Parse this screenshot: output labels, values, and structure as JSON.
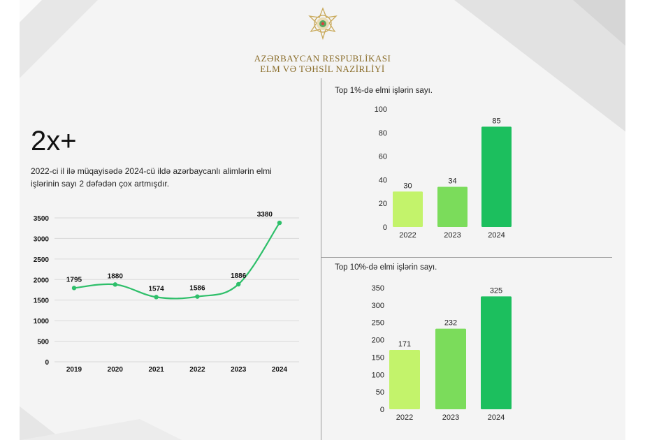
{
  "header": {
    "org_line1": "AZƏRBAYCAN RESPUBLİKASI",
    "org_line2": "ELM VƏ TƏHSİL NAZİRLİYİ"
  },
  "headline": {
    "stat": "2x+",
    "description": "2022-ci il ilə müqayisədə 2024-cü ildə azərbaycanlı alimlərin elmi işlərinin sayı 2 dəfədən çox artmışdır."
  },
  "colors": {
    "line": "#2ebf6a",
    "bar_light": "#c3f36b",
    "bar_mid": "#7bdc5b",
    "bar_dark": "#1cbf5e",
    "gold": "#8a6d2a"
  },
  "chart_data": [
    {
      "type": "line",
      "title": "",
      "x": [
        "2019",
        "2020",
        "2021",
        "2022",
        "2023",
        "2024"
      ],
      "values": [
        1795,
        1880,
        1574,
        1586,
        1886,
        3380
      ],
      "data_labels": [
        "1795",
        "1880",
        "1574",
        "1586",
        "1886",
        "3380"
      ],
      "yticks": [
        "0",
        "500",
        "1000",
        "1500",
        "2000",
        "2500",
        "3000",
        "3500"
      ],
      "ylim": [
        0,
        3500
      ],
      "grid": true
    },
    {
      "type": "bar",
      "title": "Top 1%-də elmi işlərin sayı.",
      "categories": [
        "2022",
        "2023",
        "2024"
      ],
      "values": [
        30,
        34,
        85
      ],
      "data_labels": [
        "30",
        "34",
        "85"
      ],
      "yticks": [
        "0",
        "20",
        "40",
        "60",
        "80",
        "100"
      ],
      "ylim": [
        0,
        100
      ]
    },
    {
      "type": "bar",
      "title": "Top 10%-də elmi işlərin sayı.",
      "categories": [
        "2022",
        "2023",
        "2024"
      ],
      "values": [
        171,
        232,
        325
      ],
      "data_labels": [
        "171",
        "232",
        "325"
      ],
      "yticks": [
        "0",
        "50",
        "100",
        "150",
        "200",
        "250",
        "300",
        "350"
      ],
      "ylim": [
        0,
        350
      ]
    }
  ]
}
